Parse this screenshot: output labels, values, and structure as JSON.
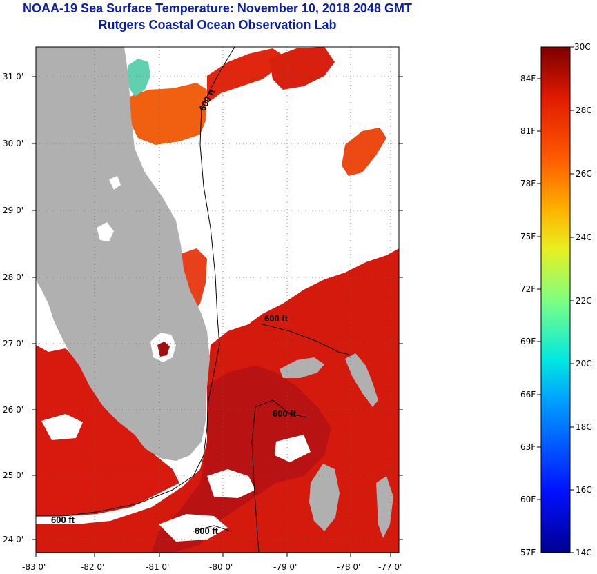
{
  "header": {
    "title": "NOAA-19 Sea Surface Temperature:  November 10, 2018 2048 GMT",
    "subtitle": "Rutgers Coastal Ocean Observation Lab"
  },
  "map": {
    "lat_ticks": [
      "31 0'",
      "30 0'",
      "29 0'",
      "28 0'",
      "27 0'",
      "26 0'",
      "25 0'",
      "24 0'"
    ],
    "lon_ticks": [
      "-83 0'",
      "-82 0'",
      "-81 0'",
      "-80 0'",
      "-79 0'",
      "-78 0'",
      "-77 0'"
    ],
    "lat_values": [
      31,
      30,
      29,
      28,
      27,
      26,
      25,
      24
    ],
    "lon_values": [
      -83,
      -82,
      -81,
      -80,
      -79,
      -78,
      -77
    ],
    "contour_labels": [
      "600 ft",
      "600 ft",
      "600 ft",
      "600 ft",
      "600 ft"
    ],
    "colors": {
      "land": "#b0b0b0",
      "cloud": "#ffffff",
      "warm_sea": "#d81a0e",
      "warm_sea_dark": "#b81010"
    }
  },
  "colorbar": {
    "celsius_ticks": [
      "30C",
      "28C",
      "26C",
      "24C",
      "22C",
      "20C",
      "18C",
      "16C",
      "14C"
    ],
    "fahrenheit_ticks": [
      "84F",
      "81F",
      "78F",
      "75F",
      "72F",
      "69F",
      "66F",
      "63F",
      "60F",
      "57F"
    ],
    "range_c": [
      14,
      30
    ],
    "range_f": [
      57,
      86
    ]
  }
}
